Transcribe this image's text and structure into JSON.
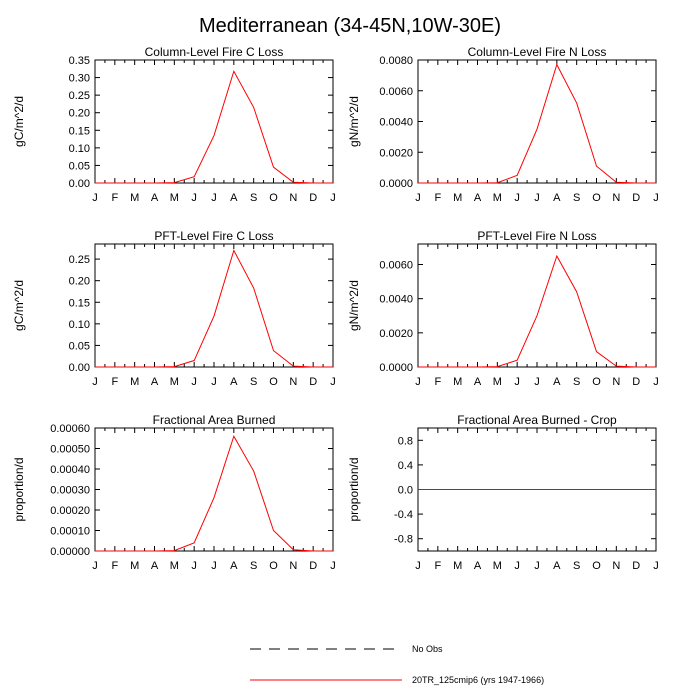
{
  "figure": {
    "title": "Mediterranean (34-45N,10W-30E)",
    "months": [
      "J",
      "F",
      "M",
      "A",
      "M",
      "J",
      "J",
      "A",
      "S",
      "O",
      "N",
      "D",
      "J"
    ],
    "legend": [
      {
        "label": "No Obs",
        "style": "dashed",
        "color": "#000000"
      },
      {
        "label": "20TR_125cmip6 (yrs 1947-1966)",
        "style": "solid",
        "color": "#ff0000"
      }
    ]
  },
  "chart_data": [
    {
      "type": "line",
      "title": "Column-Level Fire C Loss",
      "ylabel": "gC/m^2/d",
      "ylim": [
        0,
        0.35
      ],
      "yticks": [
        0,
        0.05,
        0.1,
        0.15,
        0.2,
        0.25,
        0.3,
        0.35
      ],
      "ytick_labels": [
        "0.00",
        "0.05",
        "0.10",
        "0.15",
        "0.20",
        "0.25",
        "0.30",
        "0.35"
      ],
      "series": [
        {
          "color": "#ff0000",
          "values": [
            0,
            0,
            0,
            0,
            0.001,
            0.018,
            0.135,
            0.318,
            0.215,
            0.045,
            0.002,
            0,
            0
          ]
        }
      ]
    },
    {
      "type": "line",
      "title": "Column-Level Fire N Loss",
      "ylabel": "gN/m^2/d",
      "ylim": [
        0,
        0.008
      ],
      "yticks": [
        0,
        0.002,
        0.004,
        0.006,
        0.008
      ],
      "ytick_labels": [
        "0.0000",
        "0.0020",
        "0.0040",
        "0.0060",
        "0.0080"
      ],
      "series": [
        {
          "color": "#ff0000",
          "values": [
            0,
            0,
            0,
            0,
            2e-05,
            0.0005,
            0.0035,
            0.0077,
            0.0052,
            0.0011,
            5e-05,
            0,
            0
          ]
        }
      ]
    },
    {
      "type": "line",
      "title": "PFT-Level Fire C Loss",
      "ylabel": "gC/m^2/d",
      "ylim": [
        0,
        0.285
      ],
      "yticks": [
        0,
        0.05,
        0.1,
        0.15,
        0.2,
        0.25
      ],
      "ytick_labels": [
        "0.00",
        "0.05",
        "0.10",
        "0.15",
        "0.20",
        "0.25"
      ],
      "series": [
        {
          "color": "#ff0000",
          "values": [
            0,
            0,
            0,
            0,
            0.001,
            0.015,
            0.118,
            0.27,
            0.183,
            0.038,
            0.002,
            0,
            0
          ]
        }
      ]
    },
    {
      "type": "line",
      "title": "PFT-Level Fire N Loss",
      "ylabel": "gN/m^2/d",
      "ylim": [
        0,
        0.0072
      ],
      "yticks": [
        0,
        0.002,
        0.004,
        0.006
      ],
      "ytick_labels": [
        "0.0000",
        "0.0020",
        "0.0040",
        "0.0060"
      ],
      "series": [
        {
          "color": "#ff0000",
          "values": [
            0,
            0,
            0,
            0,
            2e-05,
            0.0004,
            0.003,
            0.0065,
            0.0044,
            0.0009,
            5e-05,
            0,
            0
          ]
        }
      ]
    },
    {
      "type": "line",
      "title": "Fractional Area Burned",
      "ylabel": "proportion/d",
      "ylim": [
        0,
        0.0006
      ],
      "yticks": [
        0,
        0.0001,
        0.0002,
        0.0003,
        0.0004,
        0.0005,
        0.0006
      ],
      "ytick_labels": [
        "0.00000",
        "0.00010",
        "0.00020",
        "0.00030",
        "0.00040",
        "0.00050",
        "0.00060"
      ],
      "series": [
        {
          "color": "#ff0000",
          "values": [
            0,
            0,
            0,
            0,
            2e-06,
            4e-05,
            0.00026,
            0.00056,
            0.00039,
            0.0001,
            6e-06,
            0,
            0
          ]
        }
      ]
    },
    {
      "type": "line",
      "title": "Fractional Area Burned - Crop",
      "ylabel": "proportion/d",
      "ylim": [
        -1,
        1
      ],
      "yticks": [
        -0.8,
        -0.4,
        0,
        0.4,
        0.8
      ],
      "ytick_labels": [
        "-0.8",
        "-0.4",
        "0.0",
        "0.4",
        "0.8"
      ],
      "series": [
        {
          "color": "#ff0000",
          "values": [
            0,
            0,
            0,
            0,
            0,
            0,
            0,
            0,
            0,
            0,
            0,
            0,
            0
          ]
        }
      ]
    }
  ]
}
